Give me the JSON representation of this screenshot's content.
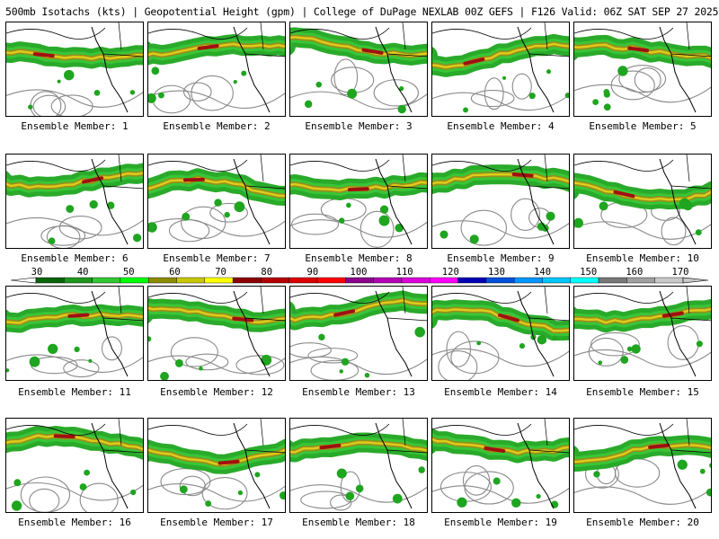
{
  "header": {
    "title": "500mb Isotachs (kts) | Geopotential Height (gpm) | College of DuPage NEXLAB   00Z GEFS | F126 Valid: 06Z SAT SEP 27 2025"
  },
  "colors": {
    "jet_green": "#1fa51f",
    "jet_light_green": "#3ccd3c",
    "jet_olive": "#a08a1a",
    "jet_yellow": "#e8d21a",
    "jet_red": "#a01010",
    "contour_gray": "#8a8a8a",
    "coast_black": "#000000"
  },
  "panels": [
    {
      "label": "Ensemble Member: 1"
    },
    {
      "label": "Ensemble Member: 2"
    },
    {
      "label": "Ensemble Member: 3"
    },
    {
      "label": "Ensemble Member: 4"
    },
    {
      "label": "Ensemble Member: 5"
    },
    {
      "label": "Ensemble Member: 6"
    },
    {
      "label": "Ensemble Member: 7"
    },
    {
      "label": "Ensemble Member: 8"
    },
    {
      "label": "Ensemble Member: 9"
    },
    {
      "label": "Ensemble Member: 10"
    },
    {
      "label": "Ensemble Member: 11"
    },
    {
      "label": "Ensemble Member: 12"
    },
    {
      "label": "Ensemble Member: 13"
    },
    {
      "label": "Ensemble Member: 14"
    },
    {
      "label": "Ensemble Member: 15"
    },
    {
      "label": "Ensemble Member: 16"
    },
    {
      "label": "Ensemble Member: 17"
    },
    {
      "label": "Ensemble Member: 18"
    },
    {
      "label": "Ensemble Member: 19"
    },
    {
      "label": "Ensemble Member: 20"
    }
  ],
  "colorbar": {
    "labels": [
      "30",
      "40",
      "50",
      "60",
      "70",
      "80",
      "90",
      "100",
      "110",
      "120",
      "130",
      "140",
      "150",
      "160",
      "170"
    ],
    "colors": [
      "#0a640a",
      "#1e961e",
      "#32c832",
      "#00ff00",
      "#8c8c00",
      "#c8c800",
      "#ffff00",
      "#8c0000",
      "#b40000",
      "#dc0000",
      "#ff0000",
      "#8c008c",
      "#b400b4",
      "#dc00dc",
      "#ff00ff",
      "#0000b4",
      "#0050dc",
      "#0096ff",
      "#00c8ff",
      "#00ffff",
      "#787878",
      "#a0a0a0",
      "#c8c8c8"
    ]
  }
}
